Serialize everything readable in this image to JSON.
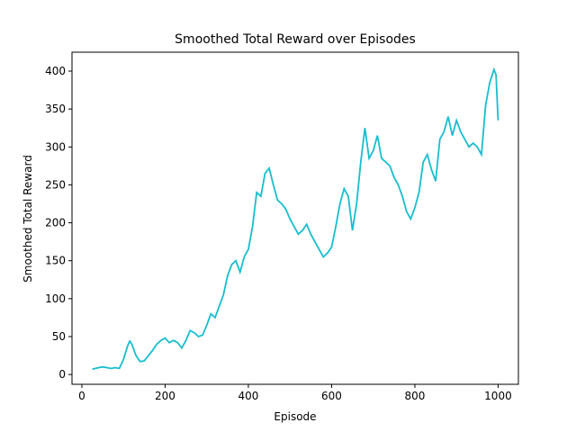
{
  "chart_data": {
    "type": "line",
    "title": "Smoothed Total Reward over Episodes",
    "xlabel": "Episode",
    "ylabel": "Smoothed Total Reward",
    "color": "#17becf",
    "x": [
      25,
      40,
      50,
      60,
      70,
      80,
      90,
      100,
      110,
      115,
      120,
      130,
      140,
      150,
      160,
      170,
      180,
      190,
      200,
      210,
      220,
      230,
      240,
      250,
      260,
      270,
      280,
      290,
      300,
      310,
      320,
      330,
      340,
      350,
      360,
      370,
      380,
      390,
      400,
      410,
      420,
      430,
      440,
      450,
      460,
      470,
      480,
      490,
      500,
      510,
      520,
      530,
      540,
      550,
      560,
      570,
      580,
      590,
      600,
      610,
      620,
      630,
      640,
      650,
      660,
      670,
      680,
      690,
      700,
      710,
      720,
      730,
      740,
      750,
      760,
      770,
      780,
      790,
      800,
      810,
      820,
      830,
      840,
      850,
      860,
      870,
      880,
      890,
      900,
      910,
      920,
      930,
      940,
      950,
      960,
      970,
      980,
      990,
      995,
      1000
    ],
    "values": [
      7,
      9,
      10,
      9,
      8,
      9,
      8,
      20,
      38,
      44,
      40,
      25,
      17,
      18,
      25,
      32,
      40,
      45,
      48,
      42,
      45,
      42,
      35,
      45,
      58,
      55,
      50,
      52,
      65,
      80,
      75,
      90,
      105,
      130,
      145,
      150,
      135,
      155,
      165,
      195,
      240,
      235,
      265,
      272,
      250,
      230,
      225,
      218,
      205,
      195,
      185,
      190,
      198,
      185,
      175,
      165,
      155,
      160,
      168,
      195,
      225,
      245,
      235,
      190,
      225,
      280,
      325,
      285,
      295,
      315,
      285,
      280,
      275,
      260,
      250,
      235,
      215,
      205,
      220,
      240,
      280,
      290,
      270,
      255,
      310,
      320,
      340,
      315,
      335,
      320,
      310,
      300,
      305,
      300,
      290,
      355,
      385,
      402,
      395,
      335
    ],
    "xlim": [
      -23.75,
      1048.75
    ],
    "ylim": [
      -12.9,
      424.9
    ],
    "xticks": [
      0,
      200,
      400,
      600,
      800,
      1000
    ],
    "yticks": [
      0,
      50,
      100,
      150,
      200,
      250,
      300,
      350,
      400
    ]
  }
}
